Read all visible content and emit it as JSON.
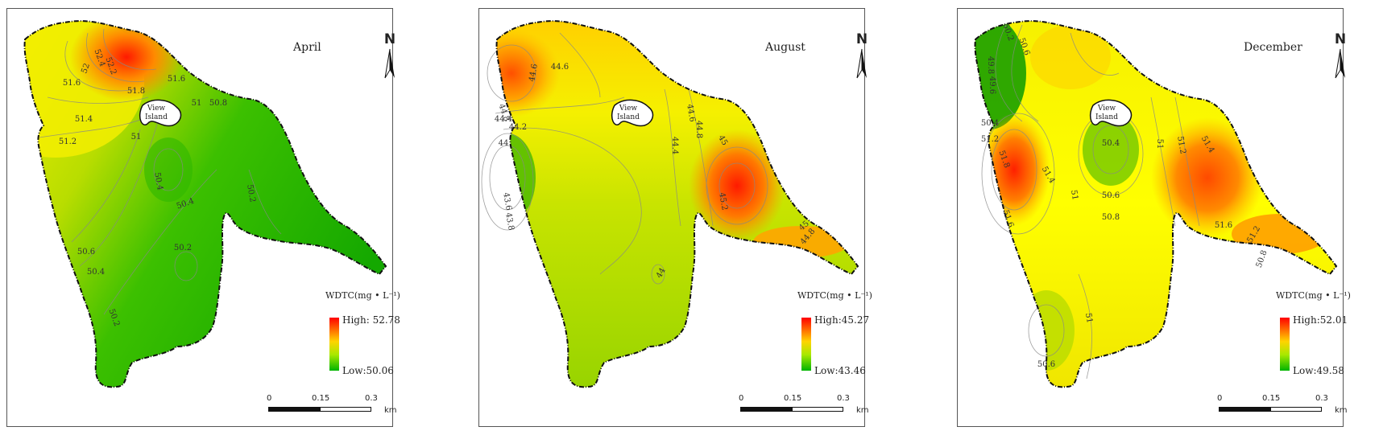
{
  "legend_title": "WDTC(mg • L⁻¹)",
  "north_label": "N",
  "island_label_line1": "View",
  "island_label_line2": "Island",
  "scale": {
    "ticks": [
      "0",
      "0.15",
      "0.3"
    ],
    "unit": "km"
  },
  "colors": {
    "high": "#ff0000",
    "mid": "#ffff00",
    "low": "#00b400"
  },
  "panels": [
    {
      "month": "April",
      "high": "High: 52.78",
      "low": "Low:50.06",
      "high_value": 52.78,
      "low_value": 50.06,
      "contour_labels": [
        "52.4",
        "52.2",
        "52",
        "51.8",
        "51.6",
        "51.6",
        "51.4",
        "51.2",
        "51",
        "51",
        "50.8",
        "50.6",
        "50.4",
        "50.4",
        "50.4",
        "50.2",
        "50.2",
        "50.2"
      ]
    },
    {
      "month": "August",
      "high": "High:45.27",
      "low": "Low:43.46",
      "high_value": 45.27,
      "low_value": 43.46,
      "contour_labels": [
        "44.8",
        "44.6",
        "44.6",
        "44.4",
        "44.2",
        "44",
        "43.6",
        "43.8",
        "44.4",
        "44.6",
        "44.8",
        "45",
        "45.2",
        "45",
        "44.8",
        "44"
      ]
    },
    {
      "month": "December",
      "high": "High:52.01",
      "low": "Low:49.58",
      "high_value": 52.01,
      "low_value": 49.58,
      "contour_labels": [
        "50.2",
        "50.6",
        "49.8",
        "49.6",
        "50.4",
        "51.2",
        "51.8",
        "51.6",
        "51.4",
        "51",
        "51",
        "50.4",
        "50.6",
        "50.8",
        "50.6",
        "51",
        "51.2",
        "51.4",
        "51.6",
        "51.2",
        "50.8"
      ]
    }
  ]
}
